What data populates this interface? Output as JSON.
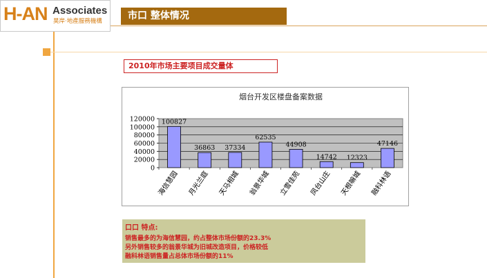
{
  "logo": {
    "mark": "H-AN",
    "name": "Associates",
    "sub": "昊岸·地產服務機構"
  },
  "header": {
    "title": "市口 整体情况"
  },
  "section": {
    "subtitle": "2010年市场主要项目成交量体"
  },
  "chart_data": {
    "type": "bar",
    "title": "烟台开发区楼盘备案数据",
    "categories": [
      "海信慧园",
      "月光兰庭",
      "天马相城",
      "翁景华城",
      "立雪佳苑",
      "凤台山庄",
      "天根嘛城",
      "融科林语"
    ],
    "values": [
      100827,
      36863,
      37334,
      62535,
      44908,
      14742,
      12323,
      47146
    ],
    "data_labels": [
      "100827",
      "36863",
      "37334",
      "62535",
      "44908",
      "14742",
      "12323",
      "47146"
    ],
    "ylim": [
      0,
      120000
    ],
    "yticks": [
      "0",
      "20000",
      "40000",
      "60000",
      "80000",
      "100000",
      "120000"
    ],
    "grid": true,
    "legend": "none",
    "plot_bg": "#c0c0c0",
    "bar_fill": "#9999ff",
    "bar_stroke": "#000000"
  },
  "notes": {
    "title": "口口 特点:",
    "lines": [
      "销售最多的为海信慧园，约占整体市场份额的23.3%",
      "另外销售较多的翁景华城为旧城改造项目，价格较低",
      "融科林语销售量占总体市场份额的11%"
    ]
  }
}
